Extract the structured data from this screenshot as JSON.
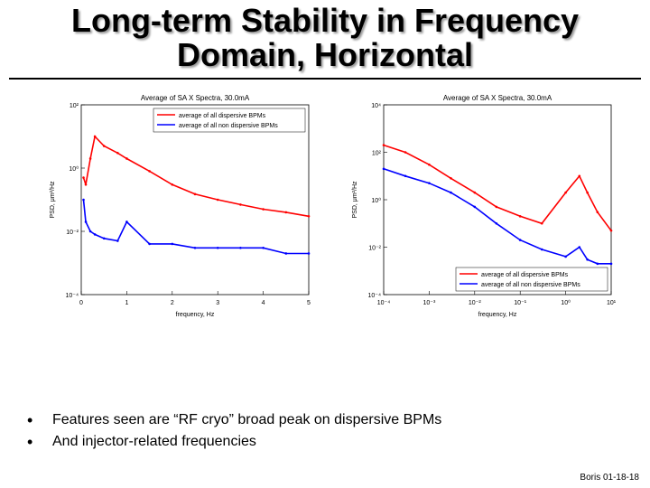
{
  "slide": {
    "title_line1": "Long-term Stability in Frequency",
    "title_line2": "Domain, Horizontal",
    "bullets": [
      "Features seen are “RF cryo” broad peak on dispersive BPMs",
      "And injector-related frequencies"
    ],
    "footer": "Boris 01-18-18"
  },
  "colors": {
    "dispersive": "#ff0000",
    "non_dispersive": "#0000ff"
  },
  "chart_data": [
    {
      "type": "line",
      "title": "Average of SA X Spectra, 30.0mA",
      "xlabel": "frequency, Hz",
      "ylabel": "PSD, μm²/Hz",
      "xscale": "linear",
      "yscale": "log",
      "xlim": [
        0,
        5
      ],
      "ylim": [
        0.0001,
        100
      ],
      "xticks": [
        "0",
        "1",
        "2",
        "3",
        "4",
        "5"
      ],
      "yticks": [
        "10⁻⁴",
        "10⁻²",
        "10⁰",
        "10²"
      ],
      "legend_position": "top-right",
      "series": [
        {
          "name": "average of all dispersive BPMs",
          "x": [
            0.05,
            0.1,
            0.2,
            0.3,
            0.5,
            0.8,
            1.0,
            1.5,
            2.0,
            2.5,
            3.0,
            3.5,
            4.0,
            4.5,
            5.0
          ],
          "y": [
            0.5,
            0.3,
            2,
            10,
            5,
            3,
            2,
            0.8,
            0.3,
            0.15,
            0.1,
            0.07,
            0.05,
            0.04,
            0.03
          ]
        },
        {
          "name": "average of all non dispersive BPMs",
          "x": [
            0.05,
            0.1,
            0.2,
            0.3,
            0.5,
            0.8,
            1.0,
            1.5,
            2.0,
            2.5,
            3.0,
            3.5,
            4.0,
            4.5,
            5.0
          ],
          "y": [
            0.1,
            0.02,
            0.01,
            0.008,
            0.006,
            0.005,
            0.02,
            0.004,
            0.004,
            0.003,
            0.003,
            0.003,
            0.003,
            0.002,
            0.002
          ]
        }
      ]
    },
    {
      "type": "line",
      "title": "Average of SA X Spectra, 30.0mA",
      "xlabel": "frequency, Hz",
      "ylabel": "PSD, μm²/Hz",
      "xscale": "log",
      "yscale": "log",
      "xlim": [
        0.0001,
        10
      ],
      "ylim": [
        0.0001,
        10000
      ],
      "xticks": [
        "10⁻⁴",
        "10⁻³",
        "10⁻²",
        "10⁻¹",
        "10⁰",
        "10¹"
      ],
      "yticks": [
        "10⁻⁴",
        "10⁻²",
        "10⁰",
        "10²",
        "10⁴"
      ],
      "legend_position": "bottom-right",
      "series": [
        {
          "name": "average of all dispersive BPMs",
          "x": [
            0.0001,
            0.0003,
            0.001,
            0.003,
            0.01,
            0.03,
            0.1,
            0.3,
            1,
            2,
            3,
            5,
            10
          ],
          "y": [
            200,
            100,
            30,
            8,
            2,
            0.5,
            0.2,
            0.1,
            2,
            10,
            2,
            0.3,
            0.05
          ]
        },
        {
          "name": "average of all non dispersive BPMs",
          "x": [
            0.0001,
            0.0003,
            0.001,
            0.003,
            0.01,
            0.03,
            0.1,
            0.3,
            1,
            2,
            3,
            5,
            10
          ],
          "y": [
            20,
            10,
            5,
            2,
            0.5,
            0.1,
            0.02,
            0.008,
            0.004,
            0.01,
            0.003,
            0.002,
            0.002
          ]
        }
      ]
    }
  ]
}
